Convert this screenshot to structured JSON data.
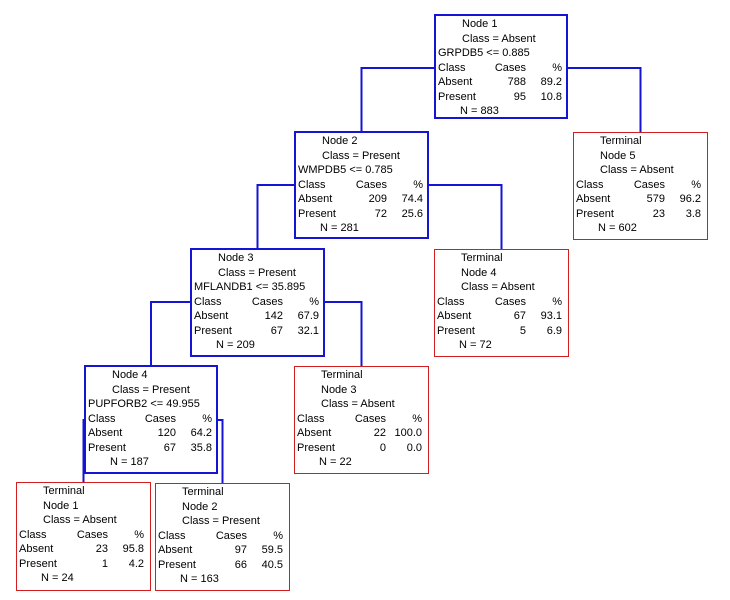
{
  "nodes": [
    {
      "id": "n1",
      "type": "split",
      "title_lines": [
        "Node 1"
      ],
      "class_line": "Class = Absent",
      "rule": "GRPDB5 <= 0.885",
      "headers": [
        "Class",
        "Cases",
        "%"
      ],
      "rows": [
        [
          "Absent",
          "788",
          "89.2"
        ],
        [
          "Present",
          "95",
          "10.8"
        ]
      ],
      "n": "N = 883"
    },
    {
      "id": "n2",
      "type": "split",
      "title_lines": [
        "Node 2"
      ],
      "class_line": "Class = Present",
      "rule": "WMPDB5 <= 0.785",
      "headers": [
        "Class",
        "Cases",
        "%"
      ],
      "rows": [
        [
          "Absent",
          "209",
          "74.4"
        ],
        [
          "Present",
          "72",
          "25.6"
        ]
      ],
      "n": "N = 281"
    },
    {
      "id": "t5",
      "type": "term",
      "title_lines": [
        "Terminal",
        "Node 5"
      ],
      "class_line": "Class = Absent",
      "rule": "",
      "headers": [
        "Class",
        "Cases",
        "%"
      ],
      "rows": [
        [
          "Absent",
          "579",
          "96.2"
        ],
        [
          "Present",
          "23",
          "3.8"
        ]
      ],
      "n": "N = 602"
    },
    {
      "id": "n3",
      "type": "split",
      "title_lines": [
        "Node 3"
      ],
      "class_line": "Class = Present",
      "rule": "MFLANDB1 <= 35.895",
      "headers": [
        "Class",
        "Cases",
        "%"
      ],
      "rows": [
        [
          "Absent",
          "142",
          "67.9"
        ],
        [
          "Present",
          "67",
          "32.1"
        ]
      ],
      "n": "N = 209"
    },
    {
      "id": "t4",
      "type": "term",
      "title_lines": [
        "Terminal",
        "Node 4"
      ],
      "class_line": "Class = Absent",
      "rule": "",
      "headers": [
        "Class",
        "Cases",
        "%"
      ],
      "rows": [
        [
          "Absent",
          "67",
          "93.1"
        ],
        [
          "Present",
          "5",
          "6.9"
        ]
      ],
      "n": "N = 72"
    },
    {
      "id": "n4",
      "type": "split",
      "title_lines": [
        "Node 4"
      ],
      "class_line": "Class = Present",
      "rule": "PUPFORB2 <= 49.955",
      "headers": [
        "Class",
        "Cases",
        "%"
      ],
      "rows": [
        [
          "Absent",
          "120",
          "64.2"
        ],
        [
          "Present",
          "67",
          "35.8"
        ]
      ],
      "n": "N = 187"
    },
    {
      "id": "t3",
      "type": "term",
      "title_lines": [
        "Terminal",
        "Node 3"
      ],
      "class_line": "Class = Absent",
      "rule": "",
      "headers": [
        "Class",
        "Cases",
        "%"
      ],
      "rows": [
        [
          "Absent",
          "22",
          "100.0"
        ],
        [
          "Present",
          "0",
          "0.0"
        ]
      ],
      "n": "N = 22"
    },
    {
      "id": "t1",
      "type": "term",
      "title_lines": [
        "Terminal",
        "Node 1"
      ],
      "class_line": "Class = Absent",
      "rule": "",
      "headers": [
        "Class",
        "Cases",
        "%"
      ],
      "rows": [
        [
          "Absent",
          "23",
          "95.8"
        ],
        [
          "Present",
          "1",
          "4.2"
        ]
      ],
      "n": "N = 24"
    },
    {
      "id": "t2",
      "type": "term",
      "title_lines": [
        "Terminal",
        "Node 2"
      ],
      "class_line": "Class = Present",
      "rule": "",
      "headers": [
        "Class",
        "Cases",
        "%"
      ],
      "rows": [
        [
          "Absent",
          "97",
          "59.5"
        ],
        [
          "Present",
          "66",
          "40.5"
        ]
      ],
      "n": "N = 163"
    }
  ],
  "edges": [
    [
      "n1",
      "n2"
    ],
    [
      "n1",
      "t5"
    ],
    [
      "n2",
      "n3"
    ],
    [
      "n2",
      "t4"
    ],
    [
      "n3",
      "n4"
    ],
    [
      "n3",
      "t3"
    ],
    [
      "n4",
      "t1"
    ],
    [
      "n4",
      "t2"
    ]
  ],
  "colors": {
    "split_border": "#1414d2",
    "terminal_border": "#d21e1e",
    "edge": "#1414d2"
  }
}
